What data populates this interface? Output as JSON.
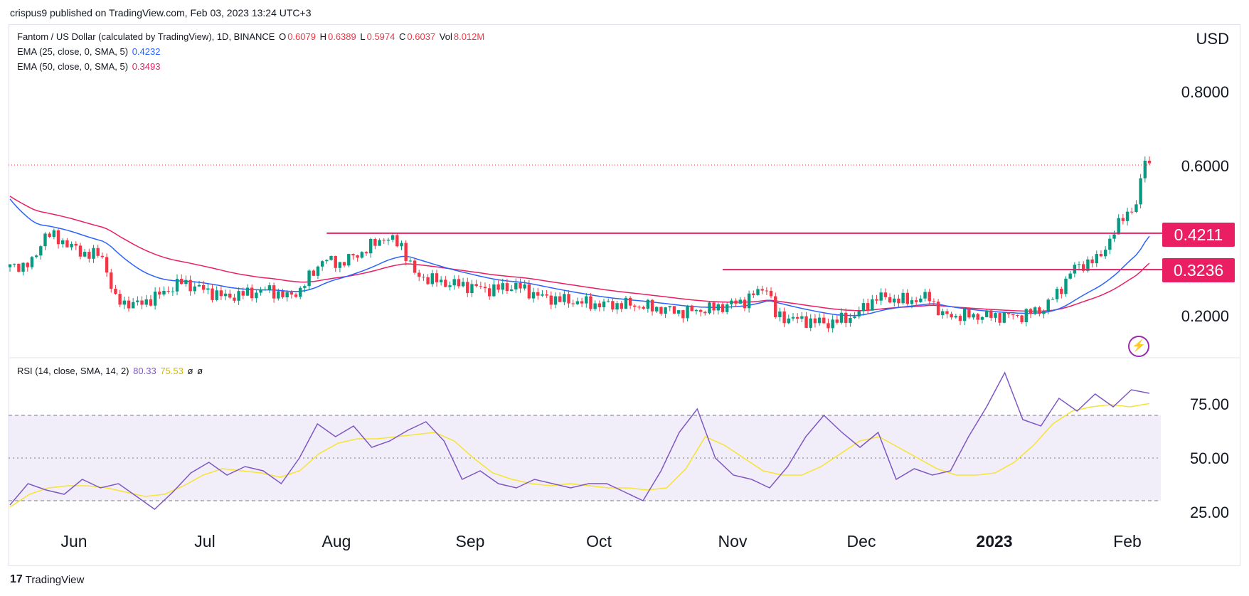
{
  "header": {
    "publish_text": "crispus9 published on TradingView.com, Feb 03, 2023 13:24 UTC+3"
  },
  "legend": {
    "symbol": "Fantom / US Dollar (calculated by TradingView), 1D, BINANCE",
    "o_label": "O",
    "o_value": "0.6079",
    "h_label": "H",
    "h_value": "0.6389",
    "l_label": "L",
    "l_value": "0.5974",
    "c_label": "C",
    "c_value": "0.6037",
    "vol_label": "Vol",
    "vol_value": "8.012M",
    "ema25_label": "EMA (25, close, 0, SMA, 5)",
    "ema25_value": "0.4232",
    "ema50_label": "EMA (50, close, 0, SMA, 5)",
    "ema50_value": "0.3493",
    "rsi_label": "RSI (14, close, SMA, 14, 2)",
    "rsi_value": "80.33",
    "rsi_sma_value": "75.53",
    "rsi_extra1": "ø",
    "rsi_extra2": "ø"
  },
  "price_axis": {
    "currency": "USD",
    "ticks": [
      "0.8000",
      "0.6000",
      "0.2000"
    ]
  },
  "rsi_axis": {
    "ticks": [
      "75.00",
      "50.00",
      "25.00"
    ]
  },
  "x_axis": {
    "ticks": [
      "Jun",
      "Jul",
      "Aug",
      "Sep",
      "Oct",
      "Nov",
      "Dec",
      "2023",
      "Feb"
    ]
  },
  "price_tags": {
    "resistance": "0.4211",
    "support": "0.3236"
  },
  "footer": {
    "brand": "TradingView"
  },
  "colors": {
    "up": "#089981",
    "down": "#f23645",
    "ema25": "#2962ff",
    "ema50": "#e91e63",
    "rsi": "#7e57c2",
    "rsi_sma": "#f7e332",
    "level": "#e91e63"
  },
  "chart_data": [
    {
      "type": "candlestick",
      "title": "Fantom / US Dollar (calculated by TradingView), 1D, BINANCE",
      "ylabel": "USD",
      "ylim": [
        0.1,
        0.9
      ],
      "x_range": [
        "2022-05-20",
        "2023-02-03"
      ],
      "key_levels": [
        0.4211,
        0.3236
      ],
      "last_price": 0.6037,
      "series": [
        {
          "name": "EMA (25, close, 0, SMA, 5)",
          "last": 0.4232
        },
        {
          "name": "EMA (50, close, 0, SMA, 5)",
          "last": 0.3493
        }
      ],
      "close": [
        [
          "2022-05-20",
          0.33
        ],
        [
          "2022-05-25",
          0.34
        ],
        [
          "2022-05-28",
          0.42
        ],
        [
          "2022-06-01",
          0.4
        ],
        [
          "2022-06-05",
          0.37
        ],
        [
          "2022-06-10",
          0.36
        ],
        [
          "2022-06-13",
          0.24
        ],
        [
          "2022-06-18",
          0.23
        ],
        [
          "2022-06-22",
          0.25
        ],
        [
          "2022-06-28",
          0.29
        ],
        [
          "2022-07-03",
          0.27
        ],
        [
          "2022-07-08",
          0.25
        ],
        [
          "2022-07-13",
          0.26
        ],
        [
          "2022-07-18",
          0.27
        ],
        [
          "2022-07-22",
          0.25
        ],
        [
          "2022-07-25",
          0.27
        ],
        [
          "2022-07-30",
          0.35
        ],
        [
          "2022-08-03",
          0.34
        ],
        [
          "2022-08-08",
          0.37
        ],
        [
          "2022-08-13",
          0.41
        ],
        [
          "2022-08-17",
          0.39
        ],
        [
          "2022-08-20",
          0.31
        ],
        [
          "2022-08-26",
          0.29
        ],
        [
          "2022-09-01",
          0.28
        ],
        [
          "2022-09-06",
          0.27
        ],
        [
          "2022-09-12",
          0.28
        ],
        [
          "2022-09-18",
          0.25
        ],
        [
          "2022-09-24",
          0.24
        ],
        [
          "2022-10-01",
          0.23
        ],
        [
          "2022-10-08",
          0.23
        ],
        [
          "2022-10-14",
          0.22
        ],
        [
          "2022-10-20",
          0.21
        ],
        [
          "2022-10-27",
          0.22
        ],
        [
          "2022-11-03",
          0.24
        ],
        [
          "2022-11-08",
          0.28
        ],
        [
          "2022-11-10",
          0.2
        ],
        [
          "2022-11-15",
          0.19
        ],
        [
          "2022-11-22",
          0.18
        ],
        [
          "2022-11-28",
          0.2
        ],
        [
          "2022-12-03",
          0.25
        ],
        [
          "2022-12-10",
          0.24
        ],
        [
          "2022-12-15",
          0.25
        ],
        [
          "2022-12-18",
          0.2
        ],
        [
          "2022-12-25",
          0.2
        ],
        [
          "2023-01-01",
          0.2
        ],
        [
          "2023-01-05",
          0.2
        ],
        [
          "2023-01-10",
          0.22
        ],
        [
          "2023-01-13",
          0.26
        ],
        [
          "2023-01-17",
          0.33
        ],
        [
          "2023-01-22",
          0.35
        ],
        [
          "2023-01-26",
          0.42
        ],
        [
          "2023-01-28",
          0.47
        ],
        [
          "2023-01-31",
          0.49
        ],
        [
          "2023-02-02",
          0.63
        ],
        [
          "2023-02-03",
          0.6037
        ]
      ]
    },
    {
      "type": "line",
      "title": "RSI (14, close, SMA, 14, 2)",
      "ylim": [
        20,
        90
      ],
      "bands": [
        30,
        50,
        70
      ],
      "series": [
        {
          "name": "RSI",
          "last": 80.33
        },
        {
          "name": "SMA",
          "last": 75.53
        }
      ],
      "rsi": [
        28,
        38,
        35,
        33,
        40,
        36,
        38,
        32,
        26,
        34,
        43,
        48,
        42,
        46,
        44,
        38,
        50,
        66,
        60,
        65,
        55,
        58,
        63,
        67,
        58,
        40,
        44,
        38,
        36,
        40,
        38,
        36,
        38,
        38,
        34,
        30,
        44,
        62,
        73,
        50,
        42,
        40,
        36,
        46,
        60,
        70,
        62,
        55,
        62,
        40,
        45,
        42,
        44,
        60,
        74,
        90,
        68,
        65,
        78,
        72,
        80,
        74,
        82,
        80.33
      ],
      "rsi_sma": [
        27,
        33,
        36,
        37,
        37,
        36,
        34,
        32,
        33,
        37,
        42,
        45,
        44,
        43,
        41,
        44,
        52,
        57,
        59,
        59,
        60,
        61,
        62,
        58,
        50,
        43,
        40,
        38,
        37,
        38,
        37,
        36,
        36,
        35,
        36,
        45,
        60,
        56,
        50,
        44,
        42,
        42,
        46,
        52,
        58,
        60,
        55,
        50,
        45,
        42,
        42,
        43,
        48,
        56,
        66,
        72,
        74,
        75,
        74,
        75.53
      ]
    }
  ]
}
